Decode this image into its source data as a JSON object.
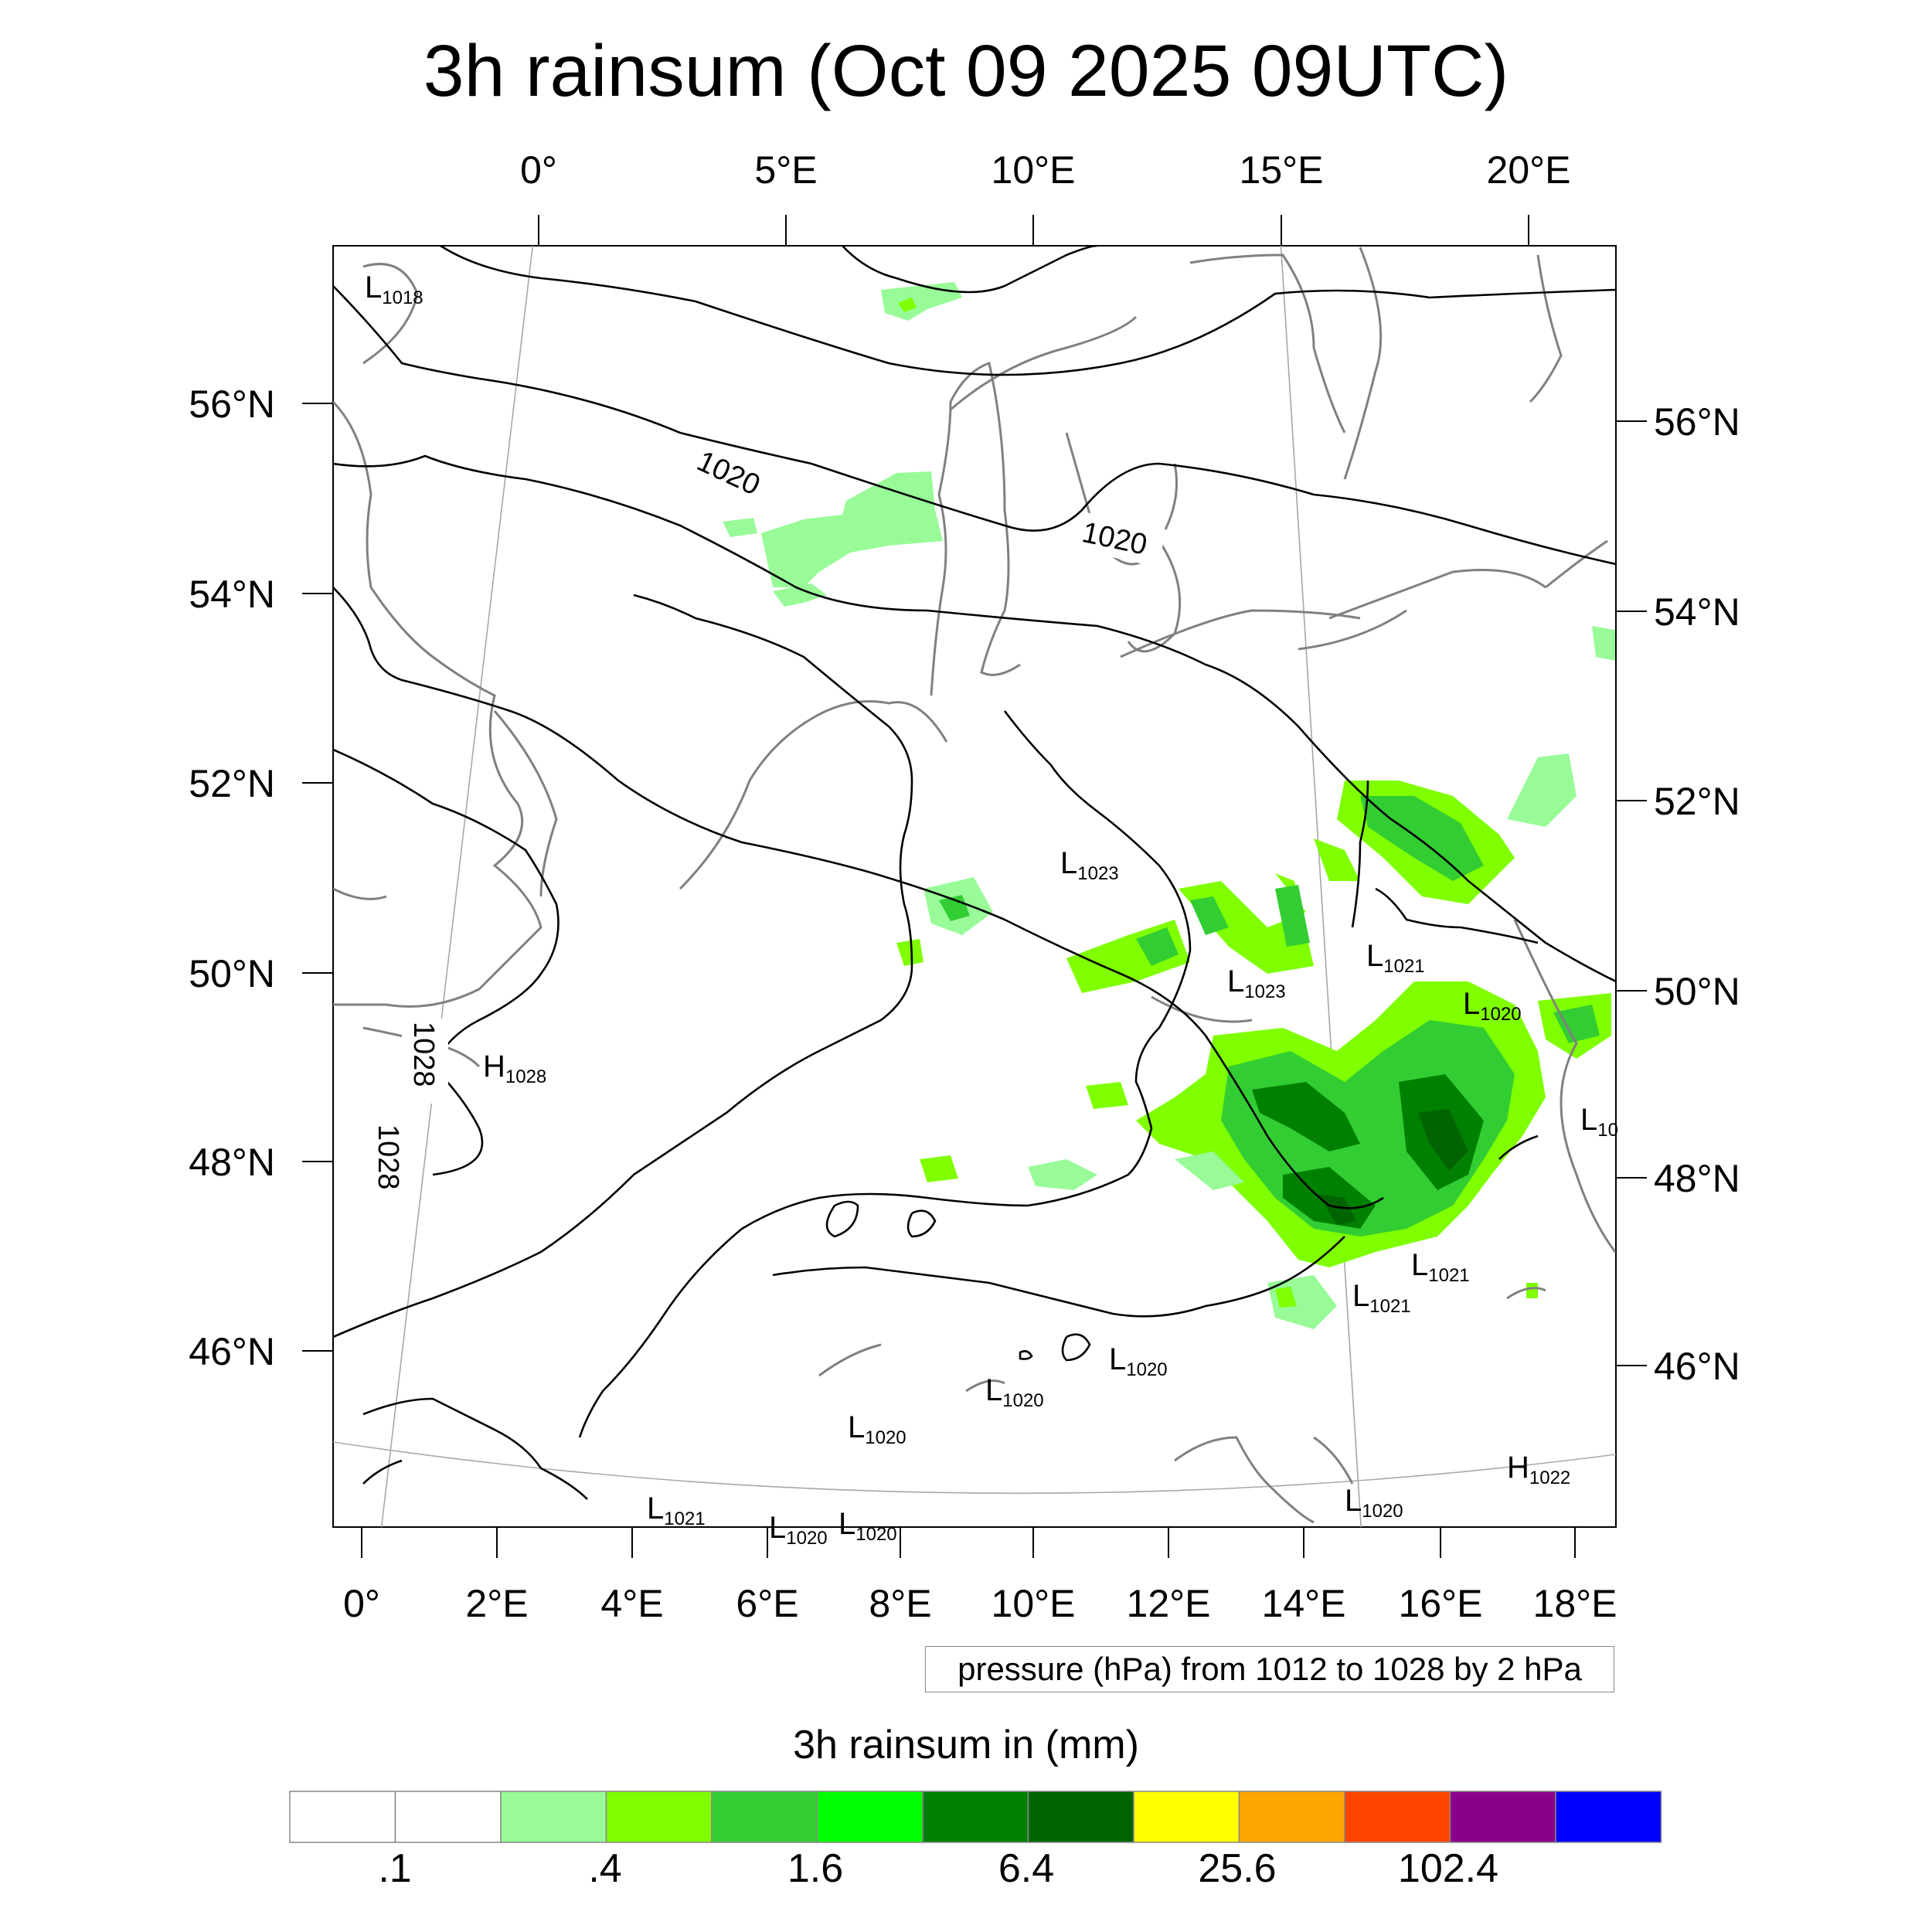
{
  "title": "3h rainsum (Oct 09 2025 09UTC)",
  "top_lon_labels": [
    "0°",
    "5°E",
    "10°E",
    "15°E",
    "20°E"
  ],
  "bottom_lon_labels": [
    "0°",
    "2°E",
    "4°E",
    "6°E",
    "8°E",
    "10°E",
    "12°E",
    "14°E",
    "16°E",
    "18°E"
  ],
  "left_lat_labels": [
    "56°N",
    "54°N",
    "52°N",
    "50°N",
    "48°N",
    "46°N"
  ],
  "right_lat_labels": [
    "56°N",
    "54°N",
    "52°N",
    "50°N",
    "48°N",
    "46°N"
  ],
  "contour_note": "pressure (hPa) from 1012 to 1028 by 2 hPa",
  "isobar_labels": [
    "1020",
    "1020",
    "1028",
    "1028"
  ],
  "pressure_centers": [
    {
      "type": "L",
      "value": "1018"
    },
    {
      "type": "H",
      "value": "1028"
    },
    {
      "type": "L",
      "value": "1023"
    },
    {
      "type": "L",
      "value": "1023"
    },
    {
      "type": "L",
      "value": "1021"
    },
    {
      "type": "L",
      "value": "1020"
    },
    {
      "type": "L",
      "value": "10"
    },
    {
      "type": "L",
      "value": "1021"
    },
    {
      "type": "L",
      "value": "1021"
    },
    {
      "type": "L",
      "value": "1020"
    },
    {
      "type": "L",
      "value": "1020"
    },
    {
      "type": "L",
      "value": "1020"
    },
    {
      "type": "H",
      "value": "1022"
    },
    {
      "type": "L",
      "value": "1021"
    },
    {
      "type": "L",
      "value": "1020"
    },
    {
      "type": "L",
      "value": "1020"
    },
    {
      "type": "L",
      "value": "1020"
    }
  ],
  "colorbar": {
    "title": "3h rainsum in (mm)",
    "colors": [
      "#ffffff",
      "#ffffff",
      "#98fb98",
      "#7fff00",
      "#32cd32",
      "#00ff00",
      "#008000",
      "#006400",
      "#ffff00",
      "#ffa500",
      "#ff4500",
      "#8b008b",
      "#0000ff"
    ],
    "labels": [
      ".1",
      ".4",
      "1.6",
      "6.4",
      "25.6",
      "102.4"
    ]
  },
  "colors": {
    "isobar": "#000000",
    "coastline": "#808080",
    "graticule": "#a0a0a0"
  }
}
